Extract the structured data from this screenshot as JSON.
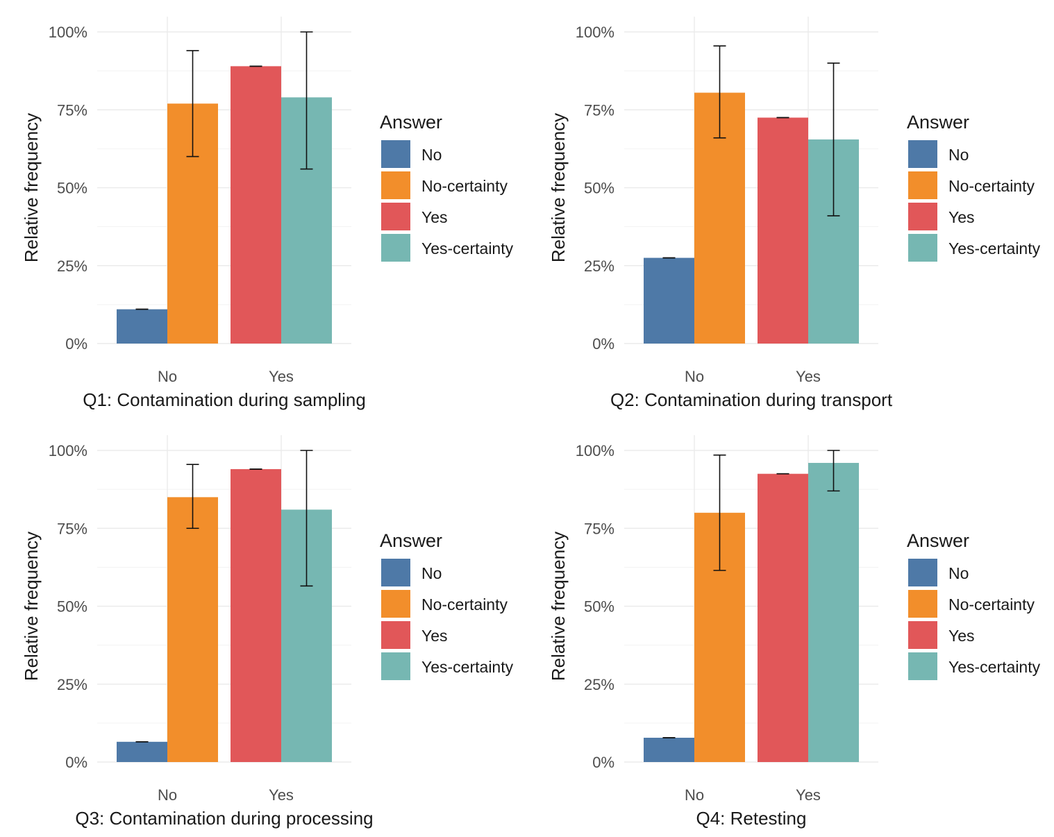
{
  "figure": {
    "series_names": [
      "No",
      "No-certainty",
      "Yes",
      "Yes-certainty"
    ]
  },
  "colors": {
    "No": "#4e79a7",
    "No-certainty": "#f28e2b",
    "Yes": "#e15759",
    "Yes-certainty": "#76b7b2"
  },
  "chart_data": [
    {
      "type": "bar",
      "title": "Q1: Contamination during sampling",
      "xlabel": "Q1: Contamination during sampling",
      "ylabel": "Relative frequency",
      "categories": [
        "No",
        "Yes"
      ],
      "yticks": [
        "0%",
        "25%",
        "50%",
        "75%",
        "100%"
      ],
      "ylim": [
        0,
        100
      ],
      "legend_title": "Answer",
      "legend_position": "right",
      "series": [
        {
          "name": "No",
          "category": "No",
          "value": 11,
          "err": [
            11,
            11
          ]
        },
        {
          "name": "No-certainty",
          "category": "No",
          "value": 77,
          "err": [
            60,
            94
          ]
        },
        {
          "name": "Yes",
          "category": "Yes",
          "value": 89,
          "err": [
            89,
            89
          ]
        },
        {
          "name": "Yes-certainty",
          "category": "Yes",
          "value": 79,
          "err": [
            56,
            100
          ]
        }
      ]
    },
    {
      "type": "bar",
      "title": "Q2: Contamination during transport",
      "xlabel": "Q2: Contamination during transport",
      "ylabel": "Relative frequency",
      "categories": [
        "No",
        "Yes"
      ],
      "yticks": [
        "0%",
        "25%",
        "50%",
        "75%",
        "100%"
      ],
      "ylim": [
        0,
        100
      ],
      "legend_title": "Answer",
      "legend_position": "right",
      "series": [
        {
          "name": "No",
          "category": "No",
          "value": 27.5,
          "err": [
            27.5,
            27.5
          ]
        },
        {
          "name": "No-certainty",
          "category": "No",
          "value": 80.5,
          "err": [
            66,
            95.5
          ]
        },
        {
          "name": "Yes",
          "category": "Yes",
          "value": 72.5,
          "err": [
            72.5,
            72.5
          ]
        },
        {
          "name": "Yes-certainty",
          "category": "Yes",
          "value": 65.5,
          "err": [
            41,
            90
          ]
        }
      ]
    },
    {
      "type": "bar",
      "title": "Q3: Contamination during processing",
      "xlabel": "Q3: Contamination during processing",
      "ylabel": "Relative frequency",
      "categories": [
        "No",
        "Yes"
      ],
      "yticks": [
        "0%",
        "25%",
        "50%",
        "75%",
        "100%"
      ],
      "ylim": [
        0,
        100
      ],
      "legend_title": "Answer",
      "legend_position": "right",
      "series": [
        {
          "name": "No",
          "category": "No",
          "value": 6.5,
          "err": [
            6.5,
            6.5
          ]
        },
        {
          "name": "No-certainty",
          "category": "No",
          "value": 85,
          "err": [
            75,
            95.5
          ]
        },
        {
          "name": "Yes",
          "category": "Yes",
          "value": 94,
          "err": [
            94,
            94
          ]
        },
        {
          "name": "Yes-certainty",
          "category": "Yes",
          "value": 81,
          "err": [
            56.5,
            100
          ]
        }
      ]
    },
    {
      "type": "bar",
      "title": "Q4: Retesting",
      "xlabel": "Q4: Retesting",
      "ylabel": "Relative frequency",
      "categories": [
        "No",
        "Yes"
      ],
      "yticks": [
        "0%",
        "25%",
        "50%",
        "75%",
        "100%"
      ],
      "ylim": [
        0,
        100
      ],
      "legend_title": "Answer",
      "legend_position": "right",
      "series": [
        {
          "name": "No",
          "category": "No",
          "value": 7.8,
          "err": [
            7.8,
            7.8
          ]
        },
        {
          "name": "No-certainty",
          "category": "No",
          "value": 80,
          "err": [
            61.5,
            98.5
          ]
        },
        {
          "name": "Yes",
          "category": "Yes",
          "value": 92.5,
          "err": [
            92.5,
            92.5
          ]
        },
        {
          "name": "Yes-certainty",
          "category": "Yes",
          "value": 96,
          "err": [
            87,
            100
          ]
        }
      ]
    }
  ]
}
